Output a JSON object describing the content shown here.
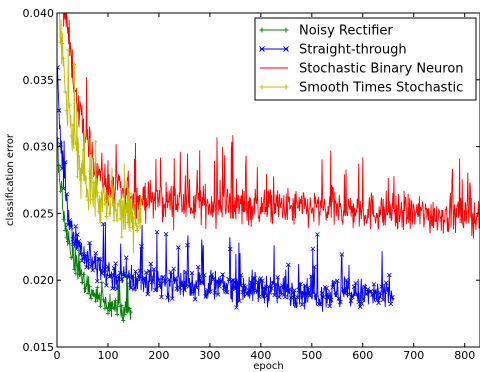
{
  "chart_data": {
    "type": "line",
    "xlabel": "epoch",
    "ylabel": "classification error",
    "xlim": [
      0,
      830
    ],
    "ylim": [
      0.015,
      0.04
    ],
    "xticks": [
      0,
      100,
      200,
      300,
      400,
      500,
      600,
      700,
      800
    ],
    "yticks": [
      0.015,
      0.02,
      0.025,
      0.03,
      0.035,
      0.04
    ],
    "xtick_labels": [
      "0",
      "100",
      "200",
      "300",
      "400",
      "500",
      "600",
      "700",
      "800"
    ],
    "ytick_labels": [
      "0.015",
      "0.020",
      "0.025",
      "0.030",
      "0.035",
      "0.040"
    ],
    "legend_position": "top-right",
    "grid": false,
    "series": [
      {
        "name": "Noisy Rectifier",
        "color": "#008000",
        "marker": "plus",
        "x_start": 1,
        "x_end": 145,
        "keypoints": [
          [
            1,
            0.03
          ],
          [
            8,
            0.0265
          ],
          [
            18,
            0.024
          ],
          [
            30,
            0.022
          ],
          [
            50,
            0.02
          ],
          [
            80,
            0.0187
          ],
          [
            110,
            0.018
          ],
          [
            145,
            0.0176
          ]
        ],
        "noise": 0.0008
      },
      {
        "name": "Straight-through",
        "color": "#0000ff",
        "marker": "x",
        "x_start": 1,
        "x_end": 660,
        "keypoints": [
          [
            1,
            0.036
          ],
          [
            6,
            0.031
          ],
          [
            15,
            0.027
          ],
          [
            30,
            0.0235
          ],
          [
            60,
            0.0215
          ],
          [
            100,
            0.0205
          ],
          [
            150,
            0.02
          ],
          [
            250,
            0.0198
          ],
          [
            350,
            0.0195
          ],
          [
            450,
            0.0192
          ],
          [
            550,
            0.019
          ],
          [
            660,
            0.0188
          ]
        ],
        "noise": 0.001
      },
      {
        "name": "Stochastic Binary Neuron",
        "color": "#ff0000",
        "marker": "none",
        "x_start": 1,
        "x_end": 830,
        "keypoints": [
          [
            1,
            0.042
          ],
          [
            20,
            0.039
          ],
          [
            40,
            0.033
          ],
          [
            70,
            0.029
          ],
          [
            100,
            0.027
          ],
          [
            150,
            0.0262
          ],
          [
            250,
            0.0258
          ],
          [
            400,
            0.0255
          ],
          [
            550,
            0.0253
          ],
          [
            700,
            0.025
          ],
          [
            830,
            0.0248
          ]
        ],
        "noise": 0.0012
      },
      {
        "name": "Smooth Times Stochastic",
        "color": "#bfbf00",
        "marker": "plus",
        "x_start": 1,
        "x_end": 165,
        "keypoints": [
          [
            1,
            0.041
          ],
          [
            20,
            0.033
          ],
          [
            40,
            0.029
          ],
          [
            70,
            0.0265
          ],
          [
            100,
            0.0255
          ],
          [
            130,
            0.025
          ],
          [
            165,
            0.0248
          ]
        ],
        "noise": 0.0015
      }
    ]
  }
}
